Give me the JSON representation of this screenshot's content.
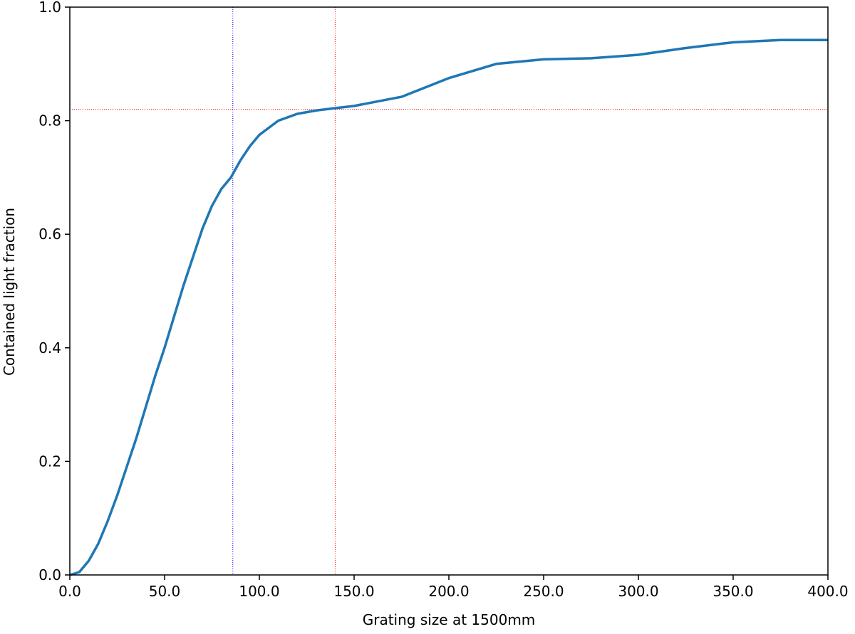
{
  "chart_data": {
    "type": "line",
    "xlabel": "Grating size at 1500mm",
    "ylabel": "Contained light fraction",
    "x": [
      0,
      5,
      10,
      15,
      20,
      25,
      30,
      35,
      40,
      45,
      50,
      55,
      60,
      65,
      70,
      75,
      80,
      85,
      90,
      95,
      100,
      110,
      120,
      130,
      140,
      150,
      175,
      200,
      225,
      250,
      275,
      300,
      325,
      350,
      375,
      400
    ],
    "series": [
      {
        "color": "#1f77b4",
        "values": [
          0,
          0.005,
          0.025,
          0.055,
          0.095,
          0.14,
          0.19,
          0.24,
          0.295,
          0.35,
          0.4,
          0.455,
          0.51,
          0.56,
          0.61,
          0.65,
          0.68,
          0.7,
          0.73,
          0.755,
          0.775,
          0.8,
          0.812,
          0.818,
          0.822,
          0.826,
          0.842,
          0.875,
          0.9,
          0.908,
          0.91,
          0.916,
          0.928,
          0.938,
          0.942,
          0.942
        ]
      }
    ],
    "reference_lines": [
      {
        "orientation": "vertical",
        "value": 86,
        "color": "#0000ff"
      },
      {
        "orientation": "vertical",
        "value": 140,
        "color": "#ff0000"
      },
      {
        "orientation": "horizontal",
        "value": 0.82,
        "color": "#ff0000"
      }
    ],
    "xlim": [
      0,
      400
    ],
    "xticks": [
      {
        "value": 0,
        "label": "0.0"
      },
      {
        "value": 50,
        "label": "50.0"
      },
      {
        "value": 100,
        "label": "100.0"
      },
      {
        "value": 150,
        "label": "150.0"
      },
      {
        "value": 200,
        "label": "200.0"
      },
      {
        "value": 250,
        "label": "250.0"
      },
      {
        "value": 300,
        "label": "300.0"
      },
      {
        "value": 350,
        "label": "350.0"
      },
      {
        "value": 400,
        "label": "400.0"
      }
    ],
    "ylim": [
      0,
      1
    ],
    "yticks": [
      {
        "value": 0,
        "label": "0.0"
      },
      0.2,
      0.4,
      0.6,
      0.8,
      {
        "value": 1,
        "label": "1.0"
      }
    ],
    "grid": false
  }
}
